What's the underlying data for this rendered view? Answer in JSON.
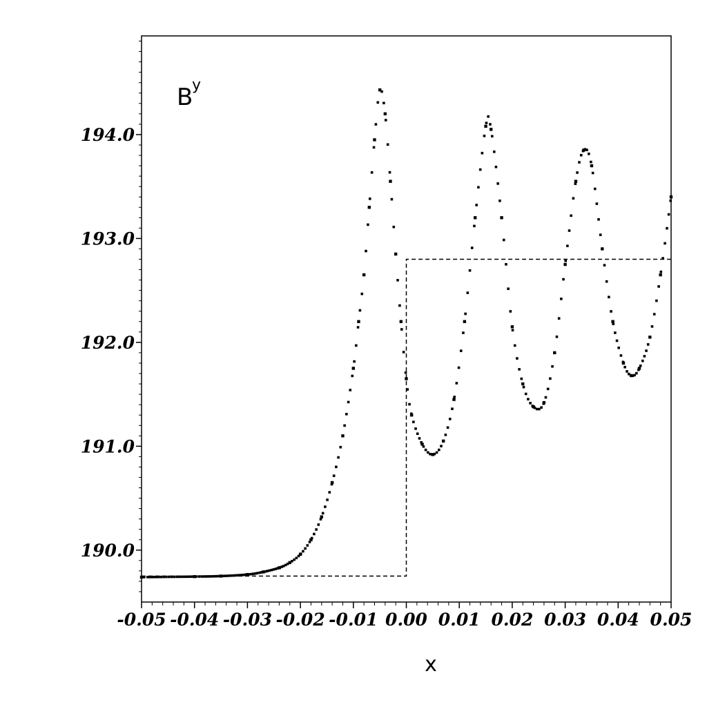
{
  "chart_data": {
    "type": "scatter",
    "title": "",
    "xlabel": "x",
    "ylabel": "",
    "annotation": {
      "base": "B",
      "sup": "y"
    },
    "xlim": [
      -0.05,
      0.05
    ],
    "ylim": [
      189.5,
      194.95
    ],
    "x_ticks": [
      {
        "value": -0.05,
        "label": "-0.05"
      },
      {
        "value": -0.04,
        "label": "-0.04"
      },
      {
        "value": -0.03,
        "label": "-0.03"
      },
      {
        "value": -0.02,
        "label": "-0.02"
      },
      {
        "value": -0.01,
        "label": "-0.01"
      },
      {
        "value": 0.0,
        "label": "0.00"
      },
      {
        "value": 0.01,
        "label": "0.01"
      },
      {
        "value": 0.02,
        "label": "0.02"
      },
      {
        "value": 0.03,
        "label": "0.03"
      },
      {
        "value": 0.04,
        "label": "0.04"
      },
      {
        "value": 0.05,
        "label": "0.05"
      }
    ],
    "y_ticks": [
      {
        "value": 190.0,
        "label": "190.0"
      },
      {
        "value": 191.0,
        "label": "191.0"
      },
      {
        "value": 192.0,
        "label": "192.0"
      },
      {
        "value": 193.0,
        "label": "193.0"
      },
      {
        "value": 194.0,
        "label": "194.0"
      }
    ],
    "grid": false,
    "series": [
      {
        "style": "dotted-markers",
        "points": [
          [
            -0.05,
            189.74
          ],
          [
            -0.04,
            189.745
          ],
          [
            -0.035,
            189.75
          ],
          [
            -0.03,
            189.765
          ],
          [
            -0.027,
            189.79
          ],
          [
            -0.024,
            189.83
          ],
          [
            -0.022,
            189.88
          ],
          [
            -0.02,
            189.96
          ],
          [
            -0.018,
            190.1
          ],
          [
            -0.016,
            190.32
          ],
          [
            -0.014,
            190.65
          ],
          [
            -0.012,
            191.1
          ],
          [
            -0.01,
            191.75
          ],
          [
            -0.009,
            192.2
          ],
          [
            -0.008,
            192.65
          ],
          [
            -0.007,
            193.3
          ],
          [
            -0.006,
            193.95
          ],
          [
            -0.005,
            194.43
          ],
          [
            -0.004,
            194.2
          ],
          [
            -0.003,
            193.55
          ],
          [
            -0.002,
            192.85
          ],
          [
            -0.001,
            192.2
          ],
          [
            0.0,
            191.65
          ],
          [
            0.001,
            191.3
          ],
          [
            0.003,
            191.02
          ],
          [
            0.005,
            190.92
          ],
          [
            0.007,
            191.05
          ],
          [
            0.009,
            191.45
          ],
          [
            0.011,
            192.2
          ],
          [
            0.013,
            193.2
          ],
          [
            0.015,
            194.08
          ],
          [
            0.016,
            194.05
          ],
          [
            0.018,
            193.2
          ],
          [
            0.02,
            192.15
          ],
          [
            0.022,
            191.6
          ],
          [
            0.024,
            191.38
          ],
          [
            0.026,
            191.42
          ],
          [
            0.028,
            191.9
          ],
          [
            0.03,
            192.75
          ],
          [
            0.032,
            193.55
          ],
          [
            0.0335,
            193.85
          ],
          [
            0.035,
            193.7
          ],
          [
            0.037,
            192.9
          ],
          [
            0.039,
            192.2
          ],
          [
            0.041,
            191.8
          ],
          [
            0.0425,
            191.68
          ],
          [
            0.044,
            191.75
          ],
          [
            0.046,
            192.05
          ],
          [
            0.048,
            192.65
          ],
          [
            0.05,
            193.4
          ]
        ]
      },
      {
        "style": "dashed",
        "points": [
          [
            -0.05,
            189.75
          ],
          [
            0.0,
            189.75
          ],
          [
            0.0,
            192.8
          ],
          [
            0.05,
            192.8
          ]
        ]
      }
    ]
  }
}
